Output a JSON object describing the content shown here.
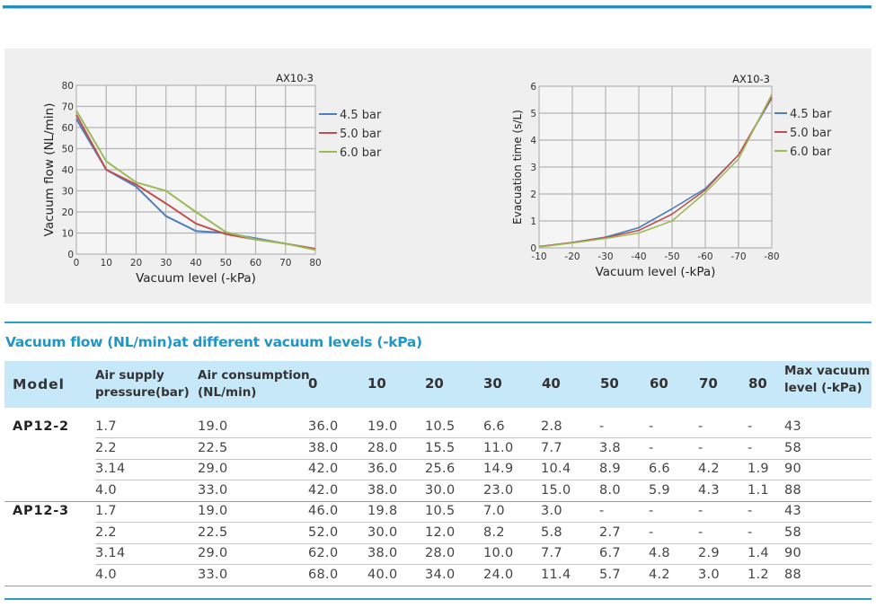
{
  "chart_data": [
    {
      "type": "line",
      "title": "AX10-3",
      "xlabel": "Vacuum level (-kPa)",
      "ylabel": "Vacuum flow (NL/min)",
      "x": [
        0,
        10,
        20,
        30,
        40,
        50,
        60,
        70,
        80
      ],
      "xticks": [
        "0",
        "10",
        "20",
        "30",
        "40",
        "50",
        "60",
        "70",
        "80"
      ],
      "yticks": [
        "0",
        "10",
        "20",
        "30",
        "40",
        "50",
        "60",
        "70",
        "80"
      ],
      "xlim": [
        0,
        80
      ],
      "ylim": [
        0,
        80
      ],
      "grid": true,
      "legend_position": "right",
      "series": [
        {
          "name": "4.5 bar",
          "color": "#4a7fc1",
          "values": [
            64,
            40,
            32,
            18,
            11,
            10,
            7.5,
            5,
            2.5
          ]
        },
        {
          "name": "5.0 bar",
          "color": "#c0504d",
          "values": [
            66,
            40,
            33,
            24,
            14.5,
            9.5,
            7,
            5,
            2.5
          ]
        },
        {
          "name": "6.0 bar",
          "color": "#9bbb59",
          "values": [
            68,
            44,
            34,
            30,
            20,
            10.5,
            7,
            5,
            2
          ]
        }
      ]
    },
    {
      "type": "line",
      "title": "AX10-3",
      "xlabel": "Vacuum level (-kPa)",
      "ylabel": "Evacuation time (s/L)",
      "x": [
        -10,
        -20,
        -30,
        -40,
        -50,
        -60,
        -70,
        -80
      ],
      "xticks": [
        "-10",
        "-20",
        "-30",
        "-40",
        "-50",
        "-60",
        "-70",
        "-80"
      ],
      "yticks": [
        "0",
        "1",
        "2",
        "3",
        "4",
        "5",
        "6"
      ],
      "xlim": [
        -10,
        -80
      ],
      "ylim": [
        0,
        6
      ],
      "grid": true,
      "legend_position": "right",
      "series": [
        {
          "name": "4.5 bar",
          "color": "#4a7fc1",
          "values": [
            0.05,
            0.2,
            0.4,
            0.75,
            1.45,
            2.2,
            3.45,
            5.55
          ]
        },
        {
          "name": "5.0 bar",
          "color": "#c0504d",
          "values": [
            0.05,
            0.2,
            0.38,
            0.65,
            1.25,
            2.15,
            3.45,
            5.6
          ]
        },
        {
          "name": "6.0 bar",
          "color": "#9bbb59",
          "values": [
            0.03,
            0.18,
            0.35,
            0.55,
            1.0,
            2.05,
            3.3,
            5.7
          ]
        }
      ]
    }
  ],
  "table": {
    "title": "Vacuum flow (NL/min)at different vacuum levels (-kPa)",
    "headers": {
      "model": "Model",
      "pressure": [
        "Air supply",
        "pressure(bar)"
      ],
      "consumption": [
        "Air consumption",
        "(NL/min)"
      ],
      "levels": [
        "0",
        "10",
        "20",
        "30",
        "40",
        "50",
        "60",
        "70",
        "80"
      ],
      "max": [
        "Max vacuum",
        "level (-kPa)"
      ]
    },
    "groups": [
      {
        "model": "AP12-2",
        "rows": [
          {
            "pressure": "1.7",
            "consumption": "19.0",
            "values": [
              "36.0",
              "19.0",
              "10.5",
              "6.6",
              "2.8",
              "-",
              "-",
              "-",
              "-"
            ],
            "max": "43"
          },
          {
            "pressure": "2.2",
            "consumption": "22.5",
            "values": [
              "38.0",
              "28.0",
              "15.5",
              "11.0",
              "7.7",
              "3.8",
              "-",
              "-",
              "-"
            ],
            "max": "58"
          },
          {
            "pressure": "3.14",
            "consumption": "29.0",
            "values": [
              "42.0",
              "36.0",
              "25.6",
              "14.9",
              "10.4",
              "8.9",
              "6.6",
              "4.2",
              "1.9"
            ],
            "max": "90"
          },
          {
            "pressure": "4.0",
            "consumption": "33.0",
            "values": [
              "42.0",
              "38.0",
              "30.0",
              "23.0",
              "15.0",
              "8.0",
              "5.9",
              "4.3",
              "1.1"
            ],
            "max": "88"
          }
        ]
      },
      {
        "model": "AP12-3",
        "rows": [
          {
            "pressure": "1.7",
            "consumption": "19.0",
            "values": [
              "46.0",
              "19.8",
              "10.5",
              "7.0",
              "3.0",
              "-",
              "-",
              "-",
              "-"
            ],
            "max": "43"
          },
          {
            "pressure": "2.2",
            "consumption": "22.5",
            "values": [
              "52.0",
              "30.0",
              "12.0",
              "8.2",
              "5.8",
              "2.7",
              "-",
              "-",
              "-"
            ],
            "max": "58"
          },
          {
            "pressure": "3.14",
            "consumption": "29.0",
            "values": [
              "62.0",
              "38.0",
              "28.0",
              "10.0",
              "7.7",
              "6.7",
              "4.8",
              "2.9",
              "1.4"
            ],
            "max": "90"
          },
          {
            "pressure": "4.0",
            "consumption": "33.0",
            "values": [
              "68.0",
              "40.0",
              "34.0",
              "24.0",
              "11.4",
              "5.7",
              "4.2",
              "3.0",
              "1.2"
            ],
            "max": "88"
          }
        ]
      }
    ]
  }
}
